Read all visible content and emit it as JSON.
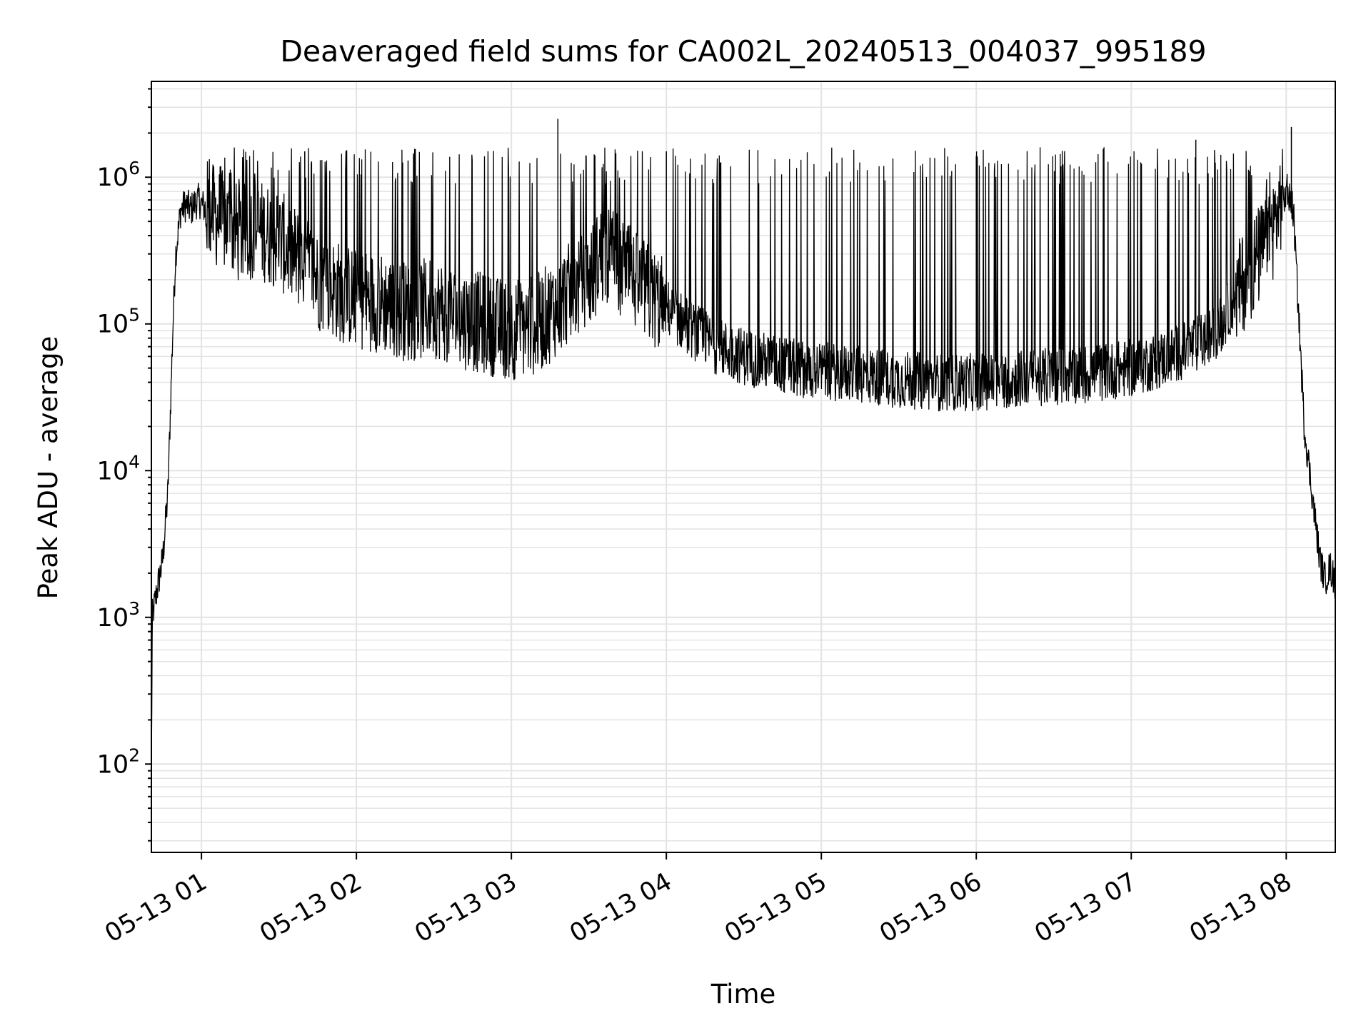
{
  "chart_data": {
    "type": "line",
    "title": "Deaveraged field sums for CA002L_20240513_004037_995189",
    "xlabel": "Time",
    "ylabel": "Peak ADU - average",
    "yscale": "log",
    "ylim": [
      25,
      4500000
    ],
    "xlim": [
      "2024-05-13 00:40:37",
      "2024-05-13 08:19:00"
    ],
    "x_ticks": [
      {
        "t": "2024-05-13 01:00",
        "label": "05-13 01"
      },
      {
        "t": "2024-05-13 02:00",
        "label": "05-13 02"
      },
      {
        "t": "2024-05-13 03:00",
        "label": "05-13 03"
      },
      {
        "t": "2024-05-13 04:00",
        "label": "05-13 04"
      },
      {
        "t": "2024-05-13 05:00",
        "label": "05-13 05"
      },
      {
        "t": "2024-05-13 06:00",
        "label": "05-13 06"
      },
      {
        "t": "2024-05-13 07:00",
        "label": "05-13 07"
      },
      {
        "t": "2024-05-13 08:00",
        "label": "05-13 08"
      }
    ],
    "y_ticks": [
      {
        "value": 100,
        "base": "10",
        "exp": "2"
      },
      {
        "value": 1000,
        "base": "10",
        "exp": "3"
      },
      {
        "value": 10000,
        "base": "10",
        "exp": "4"
      },
      {
        "value": 100000,
        "base": "10",
        "exp": "5"
      },
      {
        "value": 1000000,
        "base": "10",
        "exp": "6"
      }
    ],
    "grid": true,
    "line_color": "#000000",
    "grid_color": "#e3e3e3",
    "series": [
      {
        "x": [
          "2024-05-13 00:40:37",
          "2024-05-13 00:41",
          "2024-05-13 00:43",
          "2024-05-13 00:45",
          "2024-05-13 00:47",
          "2024-05-13 00:49",
          "2024-05-13 00:50",
          "2024-05-13 00:52",
          "2024-05-13 00:54",
          "2024-05-13 00:56",
          "2024-05-13 00:57",
          "2024-05-13 00:59",
          "2024-05-13 01:00",
          "2024-05-13 01:05",
          "2024-05-13 01:10",
          "2024-05-13 01:15",
          "2024-05-13 01:20",
          "2024-05-13 01:25",
          "2024-05-13 01:30",
          "2024-05-13 01:35",
          "2024-05-13 01:40",
          "2024-05-13 01:45",
          "2024-05-13 01:50",
          "2024-05-13 01:55",
          "2024-05-13 02:00",
          "2024-05-13 02:10",
          "2024-05-13 02:20",
          "2024-05-13 02:30",
          "2024-05-13 02:40",
          "2024-05-13 02:50",
          "2024-05-13 03:00",
          "2024-05-13 03:10",
          "2024-05-13 03:15",
          "2024-05-13 03:20",
          "2024-05-13 03:30",
          "2024-05-13 03:35",
          "2024-05-13 03:40",
          "2024-05-13 03:45",
          "2024-05-13 03:50",
          "2024-05-13 03:55",
          "2024-05-13 04:00",
          "2024-05-13 04:10",
          "2024-05-13 04:20",
          "2024-05-13 04:30",
          "2024-05-13 04:40",
          "2024-05-13 04:50",
          "2024-05-13 05:00",
          "2024-05-13 05:15",
          "2024-05-13 05:30",
          "2024-05-13 05:45",
          "2024-05-13 06:00",
          "2024-05-13 06:15",
          "2024-05-13 06:30",
          "2024-05-13 06:45",
          "2024-05-13 07:00",
          "2024-05-13 07:10",
          "2024-05-13 07:20",
          "2024-05-13 07:30",
          "2024-05-13 07:35",
          "2024-05-13 07:40",
          "2024-05-13 07:45",
          "2024-05-13 07:50",
          "2024-05-13 07:55",
          "2024-05-13 07:58",
          "2024-05-13 08:00",
          "2024-05-13 08:02",
          "2024-05-13 08:03",
          "2024-05-13 08:05",
          "2024-05-13 08:07",
          "2024-05-13 08:09",
          "2024-05-13 08:11",
          "2024-05-13 08:13",
          "2024-05-13 08:15",
          "2024-05-13 08:17",
          "2024-05-13 08:19"
        ],
        "y": [
          100,
          1000,
          1600,
          2500,
          7000,
          100000,
          300000,
          600000,
          650000,
          600000,
          650000,
          700000,
          650000,
          550000,
          480000,
          400000,
          450000,
          420000,
          380000,
          300000,
          260000,
          200000,
          180000,
          160000,
          150000,
          140000,
          120000,
          130000,
          110000,
          100000,
          90000,
          100000,
          120000,
          150000,
          200000,
          300000,
          280000,
          220000,
          180000,
          150000,
          130000,
          90000,
          70000,
          60000,
          55000,
          50000,
          48000,
          45000,
          42000,
          40000,
          40000,
          42000,
          44000,
          46000,
          50000,
          56000,
          65000,
          80000,
          100000,
          150000,
          220000,
          300000,
          450000,
          700000,
          750000,
          700000,
          500000,
          100000,
          20000,
          10000,
          5000,
          2500,
          1800,
          2200,
          1700
        ]
      }
    ],
    "spikes": [
      {
        "x": "2024-05-13 03:18",
        "y": 2500000
      },
      {
        "x": "2024-05-13 01:40",
        "y": 1500000
      },
      {
        "x": "2024-05-13 02:20",
        "y": 1300000
      },
      {
        "x": "2024-05-13 04:00",
        "y": 1500000
      },
      {
        "x": "2024-05-13 06:00",
        "y": 1400000
      },
      {
        "x": "2024-05-13 07:25",
        "y": 1800000
      },
      {
        "x": "2024-05-13 08:02",
        "y": 2200000
      }
    ]
  }
}
